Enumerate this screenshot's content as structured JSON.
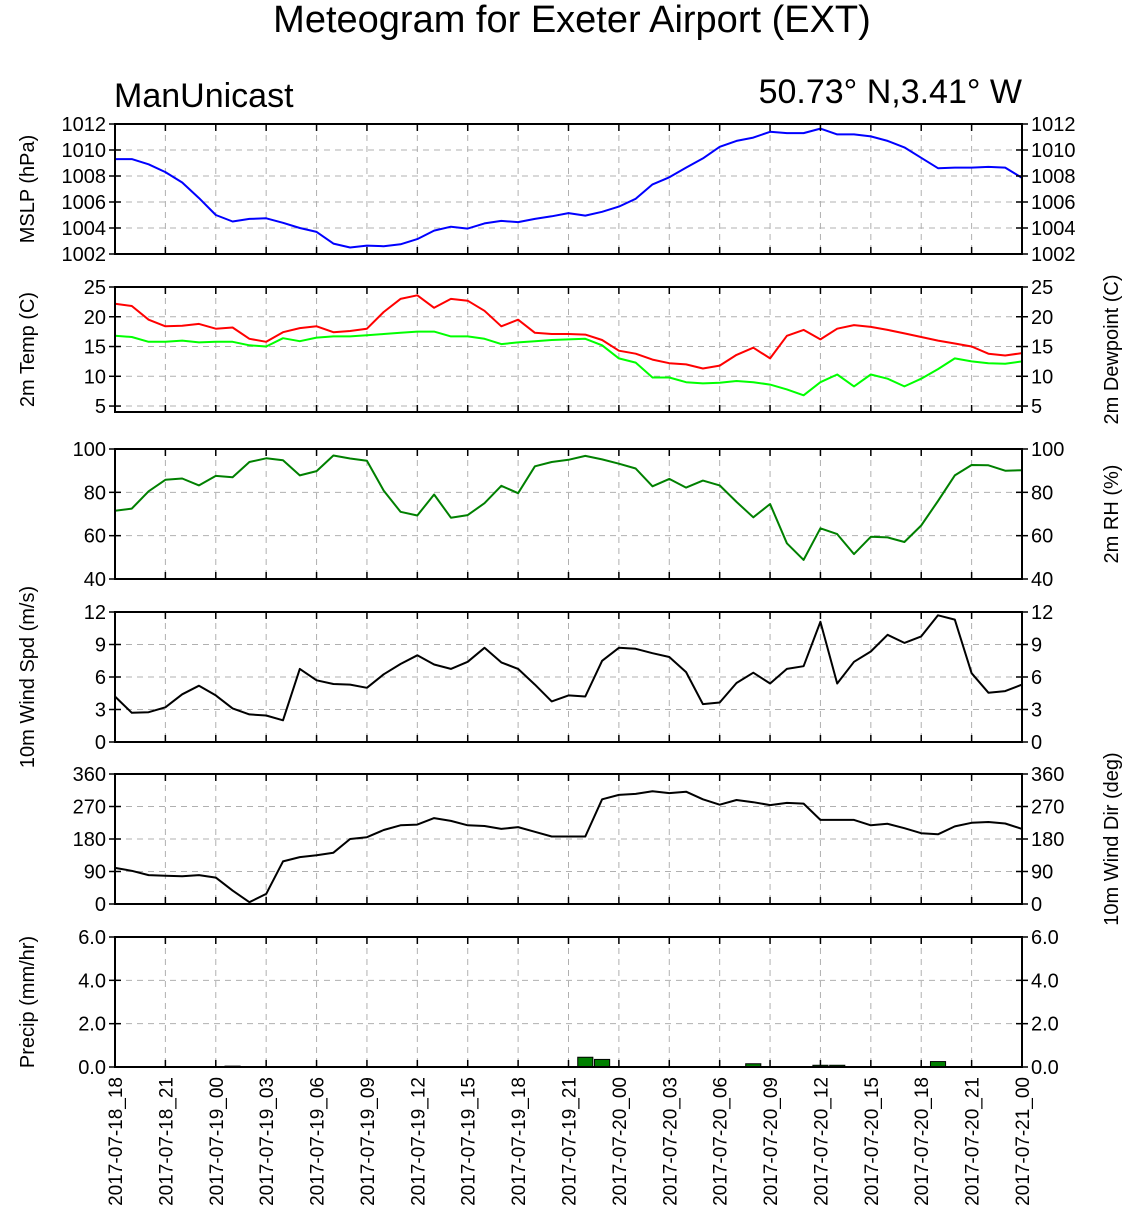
{
  "title": "Meteogram for Exeter Airport (EXT)",
  "subtitle_left": "ManUnicast",
  "subtitle_right": "50.73° N,3.41° W",
  "chart_data": {
    "type": "line",
    "x_axis": {
      "unit": "hours from 2017-07-18_18",
      "range": [
        0,
        54
      ],
      "tick_hours": [
        0,
        3,
        6,
        9,
        12,
        15,
        18,
        21,
        24,
        27,
        30,
        33,
        36,
        39,
        42,
        45,
        48,
        51,
        54
      ],
      "tick_labels": [
        "2017-07-18_18",
        "2017-07-18_21",
        "2017-07-19_00",
        "2017-07-19_03",
        "2017-07-19_06",
        "2017-07-19_09",
        "2017-07-19_12",
        "2017-07-19_15",
        "2017-07-19_18",
        "2017-07-19_21",
        "2017-07-20_00",
        "2017-07-20_03",
        "2017-07-20_06",
        "2017-07-20_09",
        "2017-07-20_12",
        "2017-07-20_15",
        "2017-07-20_18",
        "2017-07-20_21",
        "2017-07-21_00"
      ]
    },
    "panels": [
      {
        "id": "mslp",
        "type": "line",
        "ylabel_left": "MSLP (hPa)",
        "ylabel_right": "",
        "ylim": [
          1002,
          1012
        ],
        "yticks": [
          1002,
          1004,
          1006,
          1008,
          1010,
          1012
        ],
        "yticklabels": [
          "1002",
          "1004",
          "1006",
          "1008",
          "1010",
          "1012"
        ],
        "series": [
          {
            "color": "#0000ff",
            "x": [
              0,
              1,
              2,
              3,
              4,
              5,
              6,
              7,
              8,
              9,
              10,
              11,
              12,
              13,
              14,
              15,
              16,
              17,
              18,
              19,
              20,
              21,
              22,
              23,
              24,
              25,
              26,
              27,
              28,
              29,
              30,
              31,
              32,
              33,
              34,
              35,
              36,
              37,
              38,
              39,
              40,
              41,
              42,
              43,
              44,
              45,
              46,
              47,
              48,
              49,
              50,
              51,
              52,
              53,
              54
            ],
            "values": [
              1009.3,
              1009.3,
              1008.9,
              1008.3,
              1007.5,
              1006.3,
              1005.0,
              1004.5,
              1004.7,
              1004.75,
              1004.4,
              1004.0,
              1003.7,
              1002.8,
              1002.5,
              1002.65,
              1002.6,
              1002.75,
              1003.15,
              1003.8,
              1004.1,
              1003.95,
              1004.35,
              1004.55,
              1004.45,
              1004.7,
              1004.9,
              1005.15,
              1004.95,
              1005.25,
              1005.65,
              1006.25,
              1007.35,
              1007.9,
              1008.65,
              1009.35,
              1010.25,
              1010.7,
              1010.95,
              1011.4,
              1011.3,
              1011.3,
              1011.65,
              1011.2,
              1011.2,
              1011.05,
              1010.7,
              1010.2,
              1009.4,
              1008.6,
              1008.65,
              1008.65,
              1008.7,
              1008.65,
              1007.85
            ]
          }
        ]
      },
      {
        "id": "temp",
        "type": "line",
        "ylabel_left": "2m Temp (C)",
        "ylabel_right": "2m Dewpoint (C)",
        "ylim": [
          4,
          25
        ],
        "yticks": [
          5,
          10,
          15,
          20,
          25
        ],
        "yticklabels": [
          "5",
          "10",
          "15",
          "20",
          "25"
        ],
        "series": [
          {
            "color": "#ff0000",
            "x": [
              0,
              1,
              2,
              3,
              4,
              5,
              6,
              7,
              8,
              9,
              10,
              11,
              12,
              13,
              14,
              15,
              16,
              17,
              18,
              19,
              20,
              21,
              22,
              23,
              24,
              25,
              26,
              27,
              28,
              29,
              30,
              31,
              32,
              33,
              34,
              35,
              36,
              37,
              38,
              39,
              40,
              41,
              42,
              43,
              44,
              45,
              46,
              47,
              48,
              49,
              50,
              51,
              52,
              53,
              54
            ],
            "values": [
              22.2,
              21.8,
              19.5,
              18.4,
              18.5,
              18.8,
              18.0,
              18.2,
              16.3,
              15.8,
              17.4,
              18.1,
              18.4,
              17.4,
              17.6,
              18.0,
              20.8,
              23.0,
              23.6,
              21.5,
              23.0,
              22.7,
              21.0,
              18.4,
              19.5,
              17.3,
              17.1,
              17.1,
              17.0,
              16.1,
              14.3,
              13.8,
              12.8,
              12.2,
              12.0,
              11.3,
              11.8,
              13.6,
              14.8,
              13.0,
              16.8,
              17.8,
              16.2,
              18.0,
              18.6,
              18.3,
              17.8,
              17.2,
              16.6,
              16.0,
              15.5,
              15.0,
              13.8,
              13.5,
              13.9
            ]
          },
          {
            "color": "#00ff00",
            "x": [
              0,
              1,
              2,
              3,
              4,
              5,
              6,
              7,
              8,
              9,
              10,
              11,
              12,
              13,
              14,
              15,
              16,
              17,
              18,
              19,
              20,
              21,
              22,
              23,
              24,
              25,
              26,
              27,
              28,
              29,
              30,
              31,
              32,
              33,
              34,
              35,
              36,
              37,
              38,
              39,
              40,
              41,
              42,
              43,
              44,
              45,
              46,
              47,
              48,
              49,
              50,
              51,
              52,
              53,
              54
            ],
            "values": [
              16.8,
              16.6,
              15.8,
              15.8,
              16.0,
              15.7,
              15.8,
              15.8,
              15.2,
              15.0,
              16.4,
              15.9,
              16.5,
              16.7,
              16.7,
              16.9,
              17.1,
              17.3,
              17.5,
              17.5,
              16.7,
              16.7,
              16.3,
              15.4,
              15.7,
              15.9,
              16.1,
              16.2,
              16.3,
              15.2,
              13.0,
              12.3,
              9.8,
              9.8,
              9.0,
              8.8,
              8.9,
              9.2,
              9.0,
              8.6,
              7.8,
              6.8,
              9.0,
              10.3,
              8.3,
              10.3,
              9.6,
              8.3,
              9.6,
              11.2,
              13.0,
              12.5,
              12.2,
              12.1,
              12.5
            ]
          }
        ]
      },
      {
        "id": "rh",
        "type": "line",
        "ylabel_left": "",
        "ylabel_right": "2m RH (%)",
        "ylim": [
          40,
          100
        ],
        "yticks": [
          40,
          60,
          80,
          100
        ],
        "yticklabels": [
          "40",
          "60",
          "80",
          "100"
        ],
        "series": [
          {
            "color": "#008000",
            "x": [
              0,
              1,
              2,
              3,
              4,
              5,
              6,
              7,
              8,
              9,
              10,
              11,
              12,
              13,
              14,
              15,
              16,
              17,
              18,
              19,
              20,
              21,
              22,
              23,
              24,
              25,
              26,
              27,
              28,
              29,
              30,
              31,
              32,
              33,
              34,
              35,
              36,
              37,
              38,
              39,
              40,
              41,
              42,
              43,
              44,
              45,
              46,
              47,
              48,
              49,
              50,
              51,
              52,
              53,
              54
            ],
            "values": [
              71.5,
              72.5,
              80.5,
              85.8,
              86.4,
              83.2,
              87.6,
              87.0,
              94.0,
              95.7,
              94.8,
              87.8,
              89.8,
              97.0,
              95.6,
              94.6,
              80.8,
              71.0,
              69.3,
              79.0,
              68.3,
              69.5,
              75.0,
              83.0,
              79.6,
              92.0,
              94.0,
              95.0,
              96.8,
              95.2,
              93.2,
              91.0,
              82.8,
              86.2,
              82.2,
              85.4,
              83.2,
              75.6,
              68.5,
              74.6,
              56.5,
              48.8,
              63.4,
              60.7,
              51.5,
              59.5,
              59.2,
              57.1,
              64.7,
              76.0,
              87.8,
              92.6,
              92.5,
              90.0,
              90.2
            ]
          }
        ]
      },
      {
        "id": "wspd",
        "type": "line",
        "ylabel_left": "10m Wind Spd (m/s)",
        "ylabel_right": "",
        "ylim": [
          0,
          12
        ],
        "yticks": [
          0,
          3,
          6,
          9,
          12
        ],
        "yticklabels": [
          "0",
          "3",
          "6",
          "9",
          "12"
        ],
        "series": [
          {
            "color": "#000000",
            "x": [
              0,
              1,
              2,
              3,
              4,
              5,
              6,
              7,
              8,
              9,
              10,
              11,
              12,
              13,
              14,
              15,
              16,
              17,
              18,
              19,
              20,
              21,
              22,
              23,
              24,
              25,
              26,
              27,
              28,
              29,
              30,
              31,
              32,
              33,
              34,
              35,
              36,
              37,
              38,
              39,
              40,
              41,
              42,
              43,
              44,
              45,
              46,
              47,
              48,
              49,
              50,
              51,
              52,
              53,
              54
            ],
            "values": [
              4.2,
              2.7,
              2.75,
              3.2,
              4.4,
              5.2,
              4.3,
              3.1,
              2.55,
              2.45,
              2.0,
              6.75,
              5.7,
              5.35,
              5.3,
              5.0,
              6.25,
              7.2,
              8.0,
              7.15,
              6.75,
              7.4,
              8.7,
              7.35,
              6.75,
              5.3,
              3.75,
              4.3,
              4.2,
              7.5,
              8.7,
              8.6,
              8.2,
              7.85,
              6.45,
              3.5,
              3.65,
              5.45,
              6.4,
              5.4,
              6.75,
              7.0,
              11.1,
              5.4,
              7.4,
              8.35,
              9.9,
              9.15,
              9.75,
              11.7,
              11.3,
              6.35,
              4.55,
              4.7,
              5.3
            ]
          }
        ]
      },
      {
        "id": "wdir",
        "type": "line",
        "ylabel_left": "",
        "ylabel_right": "10m Wind Dir (deg)",
        "ylim": [
          0,
          360
        ],
        "yticks": [
          0,
          90,
          180,
          270,
          360
        ],
        "yticklabels": [
          "0",
          "90",
          "180",
          "270",
          "360"
        ],
        "series": [
          {
            "color": "#000000",
            "x": [
              0,
              1,
              2,
              3,
              4,
              5,
              6,
              7,
              8,
              9,
              10,
              11,
              12,
              13,
              14,
              15,
              16,
              17,
              18,
              19,
              20,
              21,
              22,
              23,
              24,
              25,
              26,
              27,
              28,
              29,
              30,
              31,
              32,
              33,
              34,
              35,
              36,
              37,
              38,
              39,
              40,
              41,
              42,
              43,
              44,
              45,
              46,
              47,
              48,
              49,
              50,
              51,
              52,
              53,
              54
            ],
            "values": [
              100,
              92,
              80,
              78,
              77,
              80,
              73,
              37,
              5,
              28,
              118,
              130,
              135,
              142,
              180,
              185,
              205,
              218,
              220,
              238,
              230,
              218,
              216,
              208,
              213,
              200,
              187,
              187,
              187,
              290,
              302,
              305,
              312,
              307,
              311,
              290,
              275,
              288,
              282,
              274,
              280,
              278,
              233,
              233,
              233,
              218,
              222,
              210,
              196,
              193,
              215,
              225,
              227,
              223,
              208
            ]
          }
        ]
      },
      {
        "id": "precip",
        "type": "bar",
        "ylabel_left": "Precip (mm/hr)",
        "ylabel_right": "",
        "ylim": [
          0,
          6
        ],
        "yticks": [
          0,
          2,
          4,
          6
        ],
        "yticklabels": [
          "0.0",
          "2.0",
          "4.0",
          "6.0"
        ],
        "bar_color": "#008000",
        "x": [
          7,
          28,
          29,
          38,
          42,
          43,
          49
        ],
        "values": [
          0.04,
          0.45,
          0.35,
          0.15,
          0.08,
          0.08,
          0.25
        ]
      }
    ]
  }
}
